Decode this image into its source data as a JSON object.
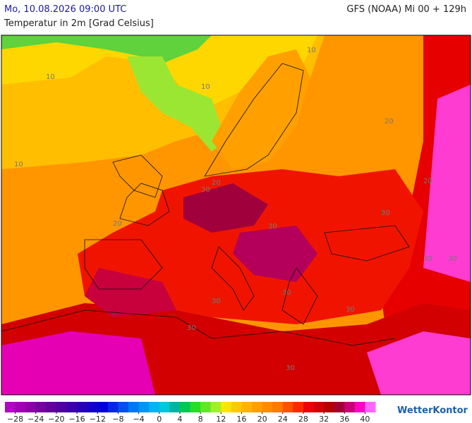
{
  "header": {
    "title": "Mo, 10.08.2026 09:00 UTC",
    "model": "GFS (NOAA) Mi 00 + 129h",
    "subtitle": "Temperatur in 2m [Grad Celsius]"
  },
  "map": {
    "contour_labels": [
      "10",
      "10",
      "10",
      "10",
      "20",
      "20",
      "20",
      "20",
      "30",
      "30",
      "30",
      "30",
      "30",
      "30",
      "30",
      "30",
      "30",
      "30"
    ]
  },
  "colorbar": {
    "range": [
      -30,
      42
    ],
    "colors": [
      "#b400c8",
      "#a000b4",
      "#8c00a8",
      "#78009c",
      "#64009a",
      "#50009c",
      "#3c00a8",
      "#2800b4",
      "#1400c8",
      "#0000dc",
      "#0028e6",
      "#0050f0",
      "#0078f0",
      "#0096f0",
      "#00b4f0",
      "#00c8dc",
      "#00b4a0",
      "#00c850",
      "#28dc28",
      "#64e628",
      "#a0f028",
      "#ffe600",
      "#ffc800",
      "#ffb400",
      "#ffa000",
      "#ff8c00",
      "#ff7800",
      "#ff5000",
      "#ff2800",
      "#f00000",
      "#d20000",
      "#b40000",
      "#a00032",
      "#c80078",
      "#ff00c8",
      "#ff64ff"
    ],
    "ticks": [
      {
        "value": -28,
        "label": "−28"
      },
      {
        "value": -24,
        "label": "−24"
      },
      {
        "value": -20,
        "label": "−20"
      },
      {
        "value": -16,
        "label": "−16"
      },
      {
        "value": -12,
        "label": "−12"
      },
      {
        "value": -8,
        "label": "−8"
      },
      {
        "value": -4,
        "label": "−4"
      },
      0,
      4,
      8,
      12,
      16,
      20,
      24,
      28,
      32,
      36,
      40
    ]
  },
  "logo": "WetterKontor"
}
